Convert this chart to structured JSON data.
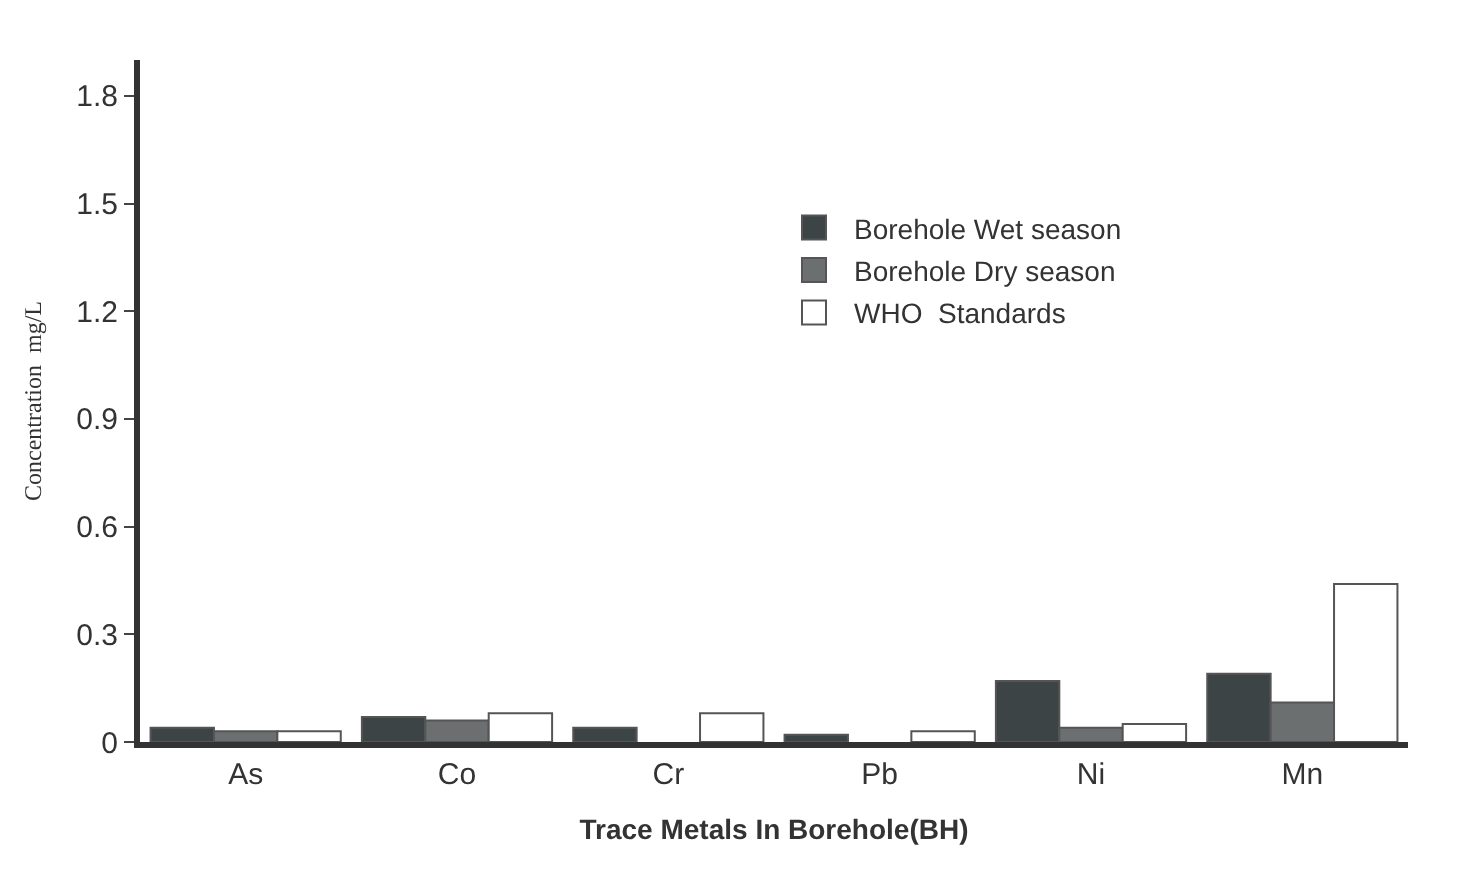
{
  "chart_data": {
    "type": "bar",
    "xlabel": "Trace Metals In Borehole(BH)",
    "ylabel": "Concentration  mg/L",
    "categories": [
      "As",
      "Co",
      "Cr",
      "Pb",
      "Ni",
      "Mn"
    ],
    "series": [
      {
        "name": "Borehole Wet season",
        "color": "#3d4446",
        "values": [
          0.04,
          0.07,
          0.04,
          0.02,
          0.17,
          0.19
        ]
      },
      {
        "name": "Borehole Dry season",
        "color": "#6b6f70",
        "values": [
          0.03,
          0.06,
          null,
          null,
          0.04,
          0.11
        ]
      },
      {
        "name": "WHO  Standards",
        "color": "#ffffff",
        "values": [
          0.03,
          0.08,
          0.08,
          0.03,
          0.05,
          0.44
        ]
      }
    ],
    "ylim": [
      0,
      1.9
    ],
    "yticks": [
      0,
      0.3,
      0.6,
      0.9,
      1.2,
      1.5,
      1.8
    ],
    "legend": "top right"
  }
}
